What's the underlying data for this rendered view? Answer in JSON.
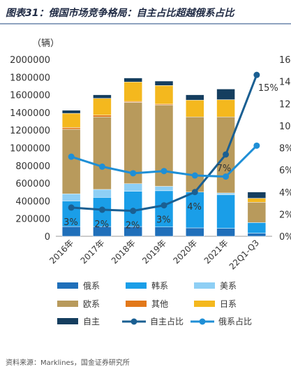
{
  "header": {
    "title": "图表31：俄国市场竞争格局：自主占比超越俄系占比"
  },
  "footer": {
    "source": "资料来源：Marklines，国金证券研究所"
  },
  "colors": {
    "russian": "#1f6fba",
    "korean": "#1a9ee8",
    "american": "#8ecff5",
    "european": "#b89a5c",
    "other": "#e2781a",
    "japanese": "#f4b81e",
    "domestic": "#153e5f",
    "domestic_share_line": "#1a5f92",
    "russian_share_line": "#1f8fd6"
  },
  "chart_data": {
    "type": "bar",
    "stacked": true,
    "unit_label": "（辆）",
    "categories": [
      "2016年",
      "2017年",
      "2018年",
      "2019年",
      "2020年",
      "2021年",
      "22Q1-Q3"
    ],
    "ylim": [
      0,
      2000000
    ],
    "y_ticks": [
      "0",
      "200000",
      "400000",
      "600000",
      "800000",
      "1000000",
      "1200000",
      "1400000",
      "1600000",
      "1800000",
      "2000000"
    ],
    "y2lim": [
      0,
      16
    ],
    "y2_ticks": [
      "0%",
      "2%",
      "4%",
      "6%",
      "8%",
      "10%",
      "12%",
      "14%",
      "16%"
    ],
    "series": [
      {
        "name": "俄系",
        "key": "russian",
        "values": [
          110000,
          110000,
          110000,
          105000,
          95000,
          90000,
          35000
        ]
      },
      {
        "name": "韩系",
        "key": "korean",
        "values": [
          290000,
          330000,
          400000,
          410000,
          405000,
          380000,
          120000
        ]
      },
      {
        "name": "美系",
        "key": "american",
        "values": [
          80000,
          90000,
          85000,
          50000,
          0,
          20000,
          0
        ]
      },
      {
        "name": "欧系",
        "key": "european",
        "values": [
          730000,
          820000,
          920000,
          920000,
          850000,
          860000,
          230000
        ]
      },
      {
        "name": "其他",
        "key": "other",
        "values": [
          20000,
          20000,
          10000,
          10000,
          0,
          0,
          0
        ]
      },
      {
        "name": "日系",
        "key": "japanese",
        "values": [
          160000,
          190000,
          220000,
          210000,
          190000,
          195000,
          45000
        ]
      },
      {
        "name": "自主",
        "key": "domestic",
        "values": [
          35000,
          40000,
          45000,
          50000,
          60000,
          120000,
          70000
        ]
      }
    ],
    "lines": [
      {
        "name": "自主占比",
        "key": "domestic_share_line",
        "values": [
          2.6,
          2.4,
          2.3,
          2.8,
          4.0,
          7.4,
          14.6
        ],
        "labels": [
          "3%",
          "2%",
          "2%",
          "3%",
          "4%",
          "7%",
          "15%"
        ]
      },
      {
        "name": "俄系占比",
        "key": "russian_share_line",
        "values": [
          7.2,
          6.3,
          5.7,
          5.9,
          5.5,
          5.4,
          8.2
        ]
      }
    ]
  }
}
